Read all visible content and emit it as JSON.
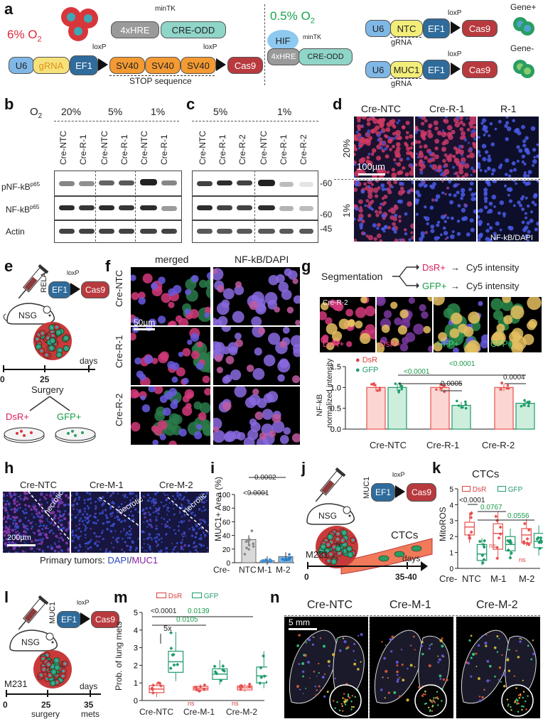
{
  "panels": {
    "a": "a",
    "b": "b",
    "c": "c",
    "d": "d",
    "e": "e",
    "f": "f",
    "g": "g",
    "h": "h",
    "i": "i",
    "j": "j",
    "k": "k",
    "l": "l",
    "m": "m",
    "n": "n"
  },
  "a": {
    "o2_left": "6% O",
    "o2_left_sub": "2",
    "o2_right": "0.5% O",
    "o2_right_sub": "2",
    "hre": "4xHRE",
    "cre_odd": "CRE-ODD",
    "mintk": "minTK",
    "u6": "U6",
    "grna": "gRNA",
    "ef1": "EF1",
    "loxp": "loxP",
    "sv40": "SV40",
    "cas9": "Cas9",
    "stop": "STOP sequence",
    "hif": "HIF",
    "ntc": "NTC",
    "muc1": "MUC1",
    "gene_plus": "Gene+",
    "gene_minus": "Gene-"
  },
  "b": {
    "o2": "O",
    "o2_sub": "2",
    "conditions": [
      "20%",
      "5%",
      "1%"
    ],
    "lanes": [
      "Cre-NTC",
      "Cre-R-1",
      "Cre-NTC",
      "Cre-R-1",
      "Cre-NTC",
      "Cre-R-1"
    ],
    "rows": [
      "pNF-kB",
      "NF-kB",
      "Actin"
    ],
    "row_sup": "p65"
  },
  "c": {
    "conditions": [
      "5%",
      "1%"
    ],
    "lanes": [
      "Cre-NTC",
      "Cre-R-1",
      "Cre-R-2",
      "Cre-NTC",
      "Cre-R-1",
      "Cre-R-2"
    ],
    "markers": [
      "-60",
      "-60",
      "-45"
    ]
  },
  "d": {
    "cols": [
      "Cre-NTC",
      "Cre-R-1",
      "R-1"
    ],
    "rows": [
      "20%",
      "1%"
    ],
    "scale": "100µm",
    "stain": "NF-kB/DAPI"
  },
  "e": {
    "vector": "RELA",
    "ef1": "EF1",
    "loxp": "loxP",
    "cas9": "Cas9",
    "mouse": "NSG",
    "axis": [
      "0",
      "25"
    ],
    "days": "days",
    "surgery": "Surgery",
    "dsr": "DsR+",
    "gfp": "GFP+"
  },
  "f": {
    "cols": [
      "merged",
      "NF-kB/DAPI"
    ],
    "rows": [
      "Cre-NTC",
      "Cre-R-1",
      "Cre-R-2"
    ],
    "scale": "50µm"
  },
  "g": {
    "segmentation": "Segmentation",
    "dsr_label": "DsR+",
    "gfp_label": "GFP+",
    "cy5": "Cy5 intensity",
    "sample": "Cre-R-2",
    "tiles": [
      "DsR+",
      "DsR+",
      "GFP+",
      "GFP+"
    ],
    "legend": [
      "DsR",
      "GFP"
    ],
    "ylabel_1": "NF-kB",
    "ylabel_2": "normalized intensity",
    "pvals": [
      "<0.0001",
      "<0.0001",
      "0.0005",
      "0.0004"
    ]
  },
  "h": {
    "cols": [
      "Cre-NTC",
      "Cre-M-1",
      "Cre-M-2"
    ],
    "necrotic": "necrotic",
    "scale": "200µm",
    "caption_a": "Primary tumors: ",
    "caption_dapi": "DAPI",
    "caption_slash": "/",
    "caption_muc1": "MUC1"
  },
  "i": {
    "ylabel": "MUC1+ Area (%)",
    "xprefix": "Cre-",
    "pvals": [
      "0.0002",
      "<0.0001"
    ]
  },
  "j": {
    "vector": "MUC1",
    "ef1": "EF1",
    "loxp": "loxP",
    "cas9": "Cas9",
    "mouse": "NSG",
    "ctcs": "CTCs",
    "cell_line": "M231",
    "axis": [
      "0",
      "35-40"
    ],
    "days": "days"
  },
  "k": {
    "title": "CTCs",
    "legend": [
      "DsR",
      "GFP"
    ],
    "ylabel": "MitoROS",
    "xprefix": "Cre-",
    "pvals": [
      "<0.0001",
      "0.0767",
      "0.0556"
    ],
    "ns": [
      "ns",
      "ns"
    ]
  },
  "l": {
    "vector": "MUC1",
    "ef1": "EF1",
    "loxp": "loxP",
    "cas9": "Cas9",
    "mouse": "NSG",
    "cell_line": "M231",
    "axis": [
      "0",
      "25",
      "35"
    ],
    "days": "days",
    "surgery": "surgery",
    "mets": "mets"
  },
  "m": {
    "legend": [
      "DsR",
      "GFP"
    ],
    "ylabel": "Prob. of lung mets",
    "pvals": [
      "<0.0001",
      "0.0105",
      "0.0139"
    ],
    "fold": "5x",
    "ns": [
      "ns",
      "ns"
    ]
  },
  "n": {
    "cols": [
      "Cre-NTC",
      "Cre-M-1",
      "Cre-M-2"
    ],
    "scale": "5 mm"
  },
  "colors": {
    "dsr": "#e8514f",
    "gfp": "#1f9b6b",
    "pink_text": "#d61f5b",
    "green_text": "#189b4a",
    "cas9": "#b83a3e",
    "ef1": "#2f6b9b",
    "u6": "#7fb8e6",
    "sv40": "#f39a33",
    "cre": "#8fd5c8",
    "hre": "#9a9a9a",
    "ntc": "#f3ee7a",
    "hif": "#8ec9f0"
  },
  "chart_data": [
    {
      "panel": "g",
      "type": "bar",
      "categories": [
        "Cre-NTC",
        "Cre-R-1",
        "Cre-R-2"
      ],
      "ylabel": "NF-kB normalized intensity",
      "ylim": [
        0,
        1.5
      ],
      "yticks": [
        0.0,
        0.5,
        1.0,
        1.5
      ],
      "series": [
        {
          "name": "DsR",
          "values": [
            1.0,
            1.0,
            1.0
          ]
        },
        {
          "name": "GFP",
          "values": [
            1.0,
            0.57,
            0.62
          ]
        }
      ]
    },
    {
      "panel": "i",
      "type": "bar",
      "categories": [
        "NTC",
        "M-1",
        "M-2"
      ],
      "ylabel": "MUC1+ Area (%)",
      "ylim": [
        0,
        100
      ],
      "yticks": [
        0,
        20,
        40,
        60,
        80,
        100
      ],
      "values": [
        34,
        3,
        9
      ]
    },
    {
      "panel": "k",
      "type": "box",
      "title": "CTCs",
      "categories": [
        "NTC",
        "M-1",
        "M-2"
      ],
      "ylabel": "MitoROS",
      "ylim": [
        0,
        5
      ],
      "yticks": [
        0,
        1,
        2,
        3,
        4,
        5
      ],
      "series": [
        {
          "name": "DsR",
          "median": [
            2.6,
            2.2,
            2.1
          ],
          "q1": [
            2.1,
            1.2,
            1.6
          ],
          "q3": [
            2.9,
            2.8,
            2.5
          ],
          "min": [
            1.6,
            0.6,
            1.4
          ],
          "max": [
            3.5,
            3.6,
            3.1
          ]
        },
        {
          "name": "GFP",
          "median": [
            0.9,
            1.5,
            1.7
          ],
          "q1": [
            0.5,
            1.1,
            1.3
          ],
          "q3": [
            1.5,
            2.0,
            2.2
          ],
          "min": [
            0.2,
            0.6,
            0.8
          ],
          "max": [
            1.9,
            2.5,
            2.7
          ]
        }
      ]
    },
    {
      "panel": "m",
      "type": "box",
      "categories": [
        "Cre-NTC",
        "Cre-M-1",
        "Cre-M-2"
      ],
      "ylabel": "Prob. of lung mets",
      "ylim": [
        0,
        5
      ],
      "yticks": [
        0,
        1,
        2,
        3,
        4,
        5
      ],
      "series": [
        {
          "name": "DsR",
          "median": [
            0.65,
            0.7,
            0.72
          ],
          "q1": [
            0.45,
            0.6,
            0.6
          ],
          "q3": [
            0.85,
            0.8,
            0.82
          ],
          "min": [
            0.2,
            0.5,
            0.5
          ],
          "max": [
            1.0,
            0.9,
            0.95
          ]
        },
        {
          "name": "GFP",
          "median": [
            2.2,
            1.5,
            1.4
          ],
          "q1": [
            1.6,
            1.2,
            1.0
          ],
          "q3": [
            2.8,
            1.8,
            1.9
          ],
          "min": [
            1.1,
            0.9,
            0.7
          ],
          "max": [
            3.9,
            2.3,
            2.8
          ]
        }
      ]
    }
  ]
}
